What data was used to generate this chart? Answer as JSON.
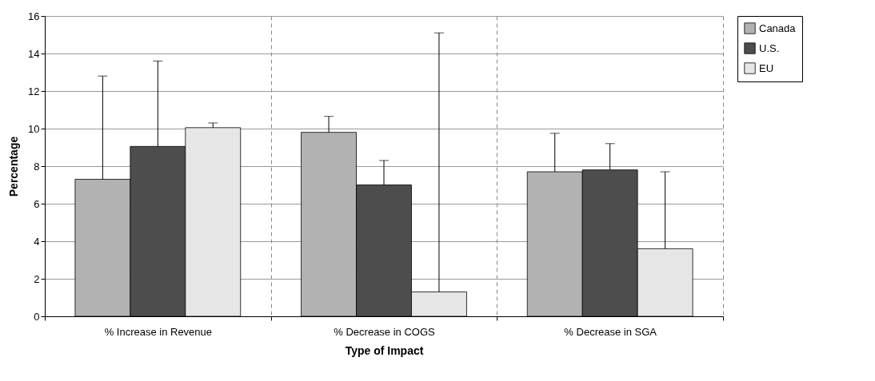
{
  "chart_data": {
    "type": "bar",
    "xlabel": "Type of Impact",
    "ylabel": "Percentage",
    "categories": [
      "% Increase in Revenue",
      "% Decrease in COGS",
      "% Decrease in SGA"
    ],
    "series": [
      {
        "name": "Canada",
        "color": "#b2b2b2",
        "values": [
          7.3,
          9.8,
          7.7
        ],
        "errors": [
          [
            7.3,
            12.8
          ],
          [
            9.8,
            10.65
          ],
          [
            7.7,
            9.75
          ]
        ]
      },
      {
        "name": "U.S.",
        "color": "#4d4d4d",
        "values": [
          9.05,
          7.0,
          7.8
        ],
        "errors": [
          [
            9.05,
            13.6
          ],
          [
            7.0,
            8.3
          ],
          [
            7.8,
            9.2
          ]
        ]
      },
      {
        "name": "EU",
        "color": "#e6e6e6",
        "values": [
          10.05,
          1.3,
          3.6
        ],
        "errors": [
          [
            10.05,
            10.3
          ],
          [
            1.3,
            15.1
          ],
          [
            3.6,
            7.7
          ]
        ]
      }
    ],
    "ylim": [
      0,
      16
    ],
    "yticks": [
      0,
      2,
      4,
      6,
      8,
      10,
      12,
      14,
      16
    ],
    "grid": true,
    "legend": "right"
  }
}
